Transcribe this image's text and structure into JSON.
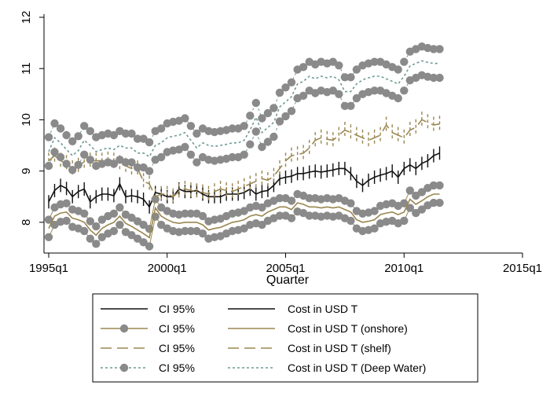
{
  "chart_data": {
    "type": "line",
    "title": "",
    "xlabel": "Quarter",
    "ylabel": "",
    "xlim": [
      1995,
      2015
    ],
    "ylim": [
      7.4,
      12
    ],
    "x_ticks": [
      {
        "value": 1995,
        "label": "1995q1"
      },
      {
        "value": 2000,
        "label": "2000q1"
      },
      {
        "value": 2005,
        "label": "2005q1"
      },
      {
        "value": 2010,
        "label": "2010q1"
      },
      {
        "value": 2015,
        "label": "2015q1"
      }
    ],
    "y_ticks": [
      {
        "value": 8,
        "label": "8"
      },
      {
        "value": 9,
        "label": "9"
      },
      {
        "value": 10,
        "label": "10"
      },
      {
        "value": 11,
        "label": "11"
      },
      {
        "value": 12,
        "label": "12"
      }
    ],
    "grid": false,
    "legend_position": "bottom",
    "colors": {
      "black": "#111111",
      "tan": "#9a8750",
      "teal": "#6f9a96",
      "gray": "#8a8a8a"
    },
    "x_start": 1995.0,
    "x_step": 0.25,
    "series": [
      {
        "name": "Cost in USD T",
        "color": "#111111",
        "style": "solid",
        "ci_style": "bars",
        "ci_halfwidth": 0.13,
        "values": [
          8.4,
          8.62,
          8.72,
          8.66,
          8.5,
          8.6,
          8.65,
          8.4,
          8.5,
          8.55,
          8.55,
          8.52,
          8.75,
          8.5,
          8.52,
          8.5,
          8.45,
          8.3,
          8.58,
          8.55,
          8.5,
          8.5,
          8.65,
          8.6,
          8.6,
          8.62,
          8.55,
          8.5,
          8.5,
          8.5,
          8.55,
          8.55,
          8.55,
          8.58,
          8.65,
          8.55,
          8.6,
          8.62,
          8.72,
          8.85,
          8.88,
          8.9,
          8.95,
          8.95,
          8.98,
          9.0,
          8.98,
          9.0,
          9.02,
          9.05,
          9.05,
          8.95,
          8.8,
          8.72,
          8.82,
          8.88,
          8.92,
          8.95,
          9.0,
          8.88,
          9.05,
          9.12,
          9.05,
          9.15,
          9.2,
          9.3,
          9.35
        ]
      },
      {
        "name": "Cost in USD T (onshore)",
        "color": "#9a8750",
        "style": "solid",
        "ci_style": "circles",
        "ci_halfwidth": 0.17,
        "values": [
          7.88,
          8.12,
          8.18,
          8.2,
          8.08,
          8.05,
          8.0,
          7.85,
          7.75,
          7.88,
          7.95,
          8.0,
          8.12,
          7.98,
          7.92,
          7.85,
          7.78,
          7.7,
          8.28,
          8.12,
          8.05,
          8.0,
          7.98,
          8.0,
          8.0,
          8.0,
          7.95,
          7.85,
          7.88,
          7.9,
          7.95,
          8.0,
          8.02,
          8.05,
          8.12,
          8.15,
          8.12,
          8.2,
          8.25,
          8.3,
          8.3,
          8.25,
          8.38,
          8.35,
          8.3,
          8.3,
          8.28,
          8.3,
          8.28,
          8.3,
          8.25,
          8.2,
          8.05,
          8.0,
          8.02,
          8.05,
          8.15,
          8.18,
          8.2,
          8.15,
          8.2,
          8.45,
          8.35,
          8.42,
          8.5,
          8.55,
          8.55
        ]
      },
      {
        "name": "Cost in USD T (shelf)",
        "color": "#9a8750",
        "style": "dash",
        "ci_style": "bars",
        "ci_halfwidth": 0.16,
        "values": [
          9.2,
          9.3,
          9.2,
          9.15,
          9.05,
          9.1,
          9.18,
          9.2,
          9.2,
          9.2,
          9.22,
          9.2,
          9.15,
          9.1,
          9.05,
          9.05,
          8.8,
          8.75,
          8.5,
          8.55,
          8.55,
          8.5,
          8.6,
          8.65,
          8.62,
          8.6,
          8.58,
          8.55,
          8.6,
          8.65,
          8.62,
          8.6,
          8.65,
          8.7,
          8.75,
          8.8,
          8.85,
          8.82,
          8.9,
          9.05,
          9.2,
          9.3,
          9.32,
          9.35,
          9.45,
          9.6,
          9.65,
          9.62,
          9.6,
          9.7,
          9.8,
          9.75,
          9.7,
          9.65,
          9.6,
          9.65,
          9.7,
          9.9,
          9.75,
          9.7,
          9.65,
          9.8,
          9.85,
          10.0,
          9.95,
          9.9,
          9.92
        ]
      },
      {
        "name": "Cost in USD T (Deep Water)",
        "color": "#6f9a96",
        "style": "dot",
        "ci_style": "circles",
        "ci_halfwidth": 0.28,
        "values": [
          9.38,
          9.65,
          9.55,
          9.42,
          9.3,
          9.4,
          9.6,
          9.5,
          9.38,
          9.42,
          9.45,
          9.42,
          9.5,
          9.45,
          9.45,
          9.35,
          9.35,
          9.28,
          9.5,
          9.55,
          9.65,
          9.68,
          9.7,
          9.75,
          9.6,
          9.45,
          9.55,
          9.5,
          9.48,
          9.5,
          9.52,
          9.55,
          9.55,
          9.6,
          9.8,
          10.05,
          9.75,
          9.85,
          9.95,
          10.25,
          10.35,
          10.45,
          10.7,
          10.75,
          10.85,
          10.8,
          10.85,
          10.82,
          10.85,
          10.78,
          10.55,
          10.55,
          10.7,
          10.78,
          10.82,
          10.85,
          10.85,
          10.8,
          10.75,
          10.7,
          10.85,
          11.05,
          11.1,
          11.15,
          11.12,
          11.1,
          11.1
        ]
      }
    ],
    "legend": {
      "columns": [
        [
          {
            "style": "solid",
            "color": "#111111",
            "marker": false,
            "label": "CI 95%"
          },
          {
            "style": "solid",
            "color": "#9a8750",
            "marker": true,
            "label": "CI 95%"
          },
          {
            "style": "dash",
            "color": "#9a8750",
            "marker": false,
            "label": "CI 95%"
          },
          {
            "style": "dot",
            "color": "#6f9a96",
            "marker": true,
            "label": "CI 95%"
          }
        ],
        [
          {
            "style": "solid",
            "color": "#111111",
            "marker": false,
            "label": "Cost in USD T"
          },
          {
            "style": "solid",
            "color": "#9a8750",
            "marker": false,
            "label": "Cost in USD T (onshore)"
          },
          {
            "style": "dash",
            "color": "#9a8750",
            "marker": false,
            "label": "Cost in USD T (shelf)"
          },
          {
            "style": "dot",
            "color": "#6f9a96",
            "marker": false,
            "label": "Cost in USD T (Deep Water)"
          }
        ]
      ]
    }
  }
}
